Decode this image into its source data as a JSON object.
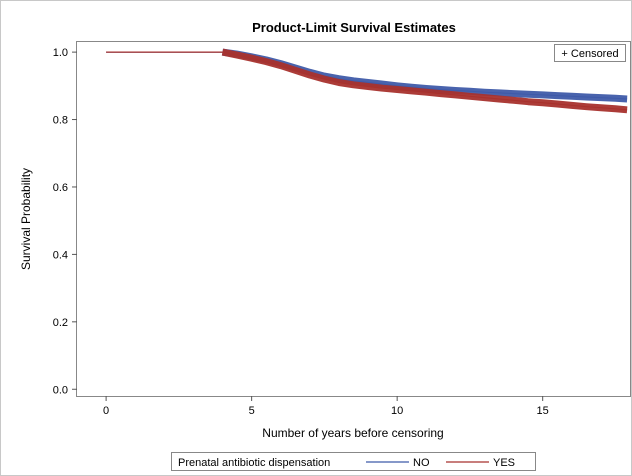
{
  "chart_data": {
    "type": "line",
    "title": "Product-Limit Survival Estimates",
    "xlabel": "Number of years before censoring",
    "ylabel": "Survival Probability",
    "xlim": [
      -1,
      18
    ],
    "ylim": [
      -0.02,
      1.03
    ],
    "xticks": [
      0,
      5,
      10,
      15
    ],
    "yticks": [
      0.0,
      0.2,
      0.4,
      0.6,
      0.8,
      1.0
    ],
    "ytick_labels": [
      "0.0",
      "0.2",
      "0.4",
      "0.6",
      "0.8",
      "1.0"
    ],
    "grid": false,
    "censored_inset_label": "+ Censored",
    "legend": {
      "placement": "bottom",
      "title": "Prenatal antibiotic dispensation",
      "entries": [
        "NO",
        "YES"
      ]
    },
    "series": [
      {
        "name": "NO",
        "color": "#3f5ba9",
        "censor_start_x": 4.0,
        "x": [
          0,
          4.0,
          4.5,
          5.0,
          5.5,
          6.0,
          6.5,
          7.0,
          7.5,
          8.0,
          8.5,
          9.0,
          9.5,
          10.0,
          10.5,
          11.0,
          11.5,
          12.0,
          12.5,
          13.0,
          13.5,
          14.0,
          14.5,
          15.0,
          15.5,
          16.0,
          16.5,
          17.0,
          17.5,
          17.9
        ],
        "y": [
          1.0,
          1.0,
          0.994,
          0.986,
          0.977,
          0.966,
          0.953,
          0.94,
          0.929,
          0.921,
          0.915,
          0.91,
          0.905,
          0.9,
          0.896,
          0.892,
          0.889,
          0.886,
          0.884,
          0.881,
          0.879,
          0.877,
          0.875,
          0.873,
          0.871,
          0.869,
          0.867,
          0.865,
          0.863,
          0.861
        ]
      },
      {
        "name": "YES",
        "color": "#a8322d",
        "censor_start_x": 4.0,
        "x": [
          0,
          4.0,
          4.5,
          5.0,
          5.5,
          6.0,
          6.5,
          7.0,
          7.5,
          8.0,
          8.5,
          9.0,
          9.5,
          10.0,
          10.5,
          11.0,
          11.5,
          12.0,
          12.5,
          13.0,
          13.5,
          14.0,
          14.5,
          15.0,
          15.5,
          16.0,
          16.5,
          17.0,
          17.5,
          17.9
        ],
        "y": [
          1.0,
          1.0,
          0.991,
          0.982,
          0.972,
          0.96,
          0.946,
          0.932,
          0.92,
          0.91,
          0.903,
          0.898,
          0.893,
          0.889,
          0.885,
          0.881,
          0.877,
          0.873,
          0.869,
          0.865,
          0.861,
          0.857,
          0.853,
          0.85,
          0.846,
          0.842,
          0.838,
          0.835,
          0.832,
          0.829
        ]
      }
    ]
  }
}
